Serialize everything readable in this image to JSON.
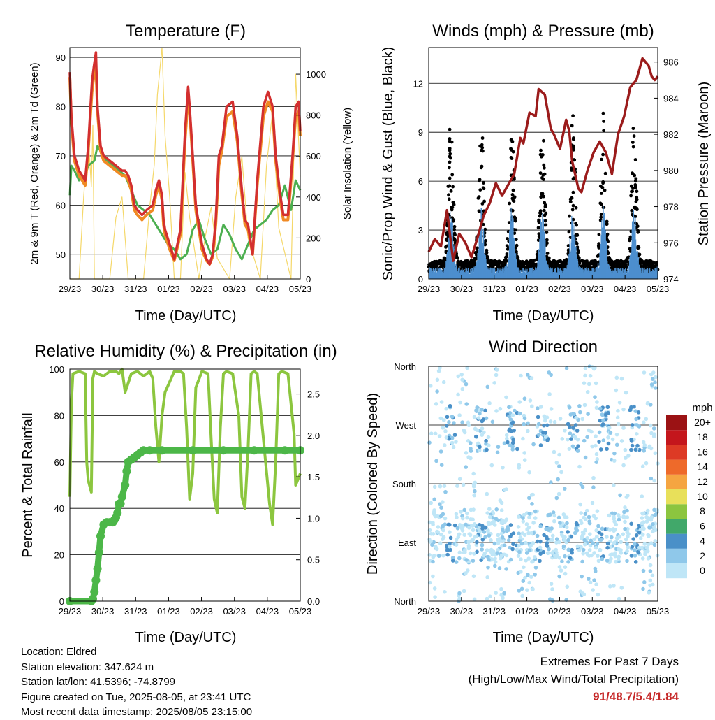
{
  "x_ticks": [
    "29/23",
    "30/23",
    "31/23",
    "01/23",
    "02/23",
    "03/23",
    "04/23",
    "05/23"
  ],
  "xlabel": "Time (Day/UTC)",
  "charts": {
    "temperature": {
      "title": "Temperature (F)",
      "ylabel": "2m & 9m T (Red, Orange) & 2m Td (Green)",
      "y2label": "Solar Insolation (Yellow)",
      "yticks": [
        "50",
        "60",
        "70",
        "80",
        "90"
      ],
      "y2ticks": [
        "0",
        "200",
        "400",
        "600",
        "800",
        "1000"
      ]
    },
    "winds": {
      "title": "Winds (mph) & Pressure (mb)",
      "ylabel": "Sonic/Prop Wind & Gust (Blue, Black)",
      "y2label": "Station Pressure (Maroon)",
      "yticks": [
        "0",
        "3",
        "6",
        "9",
        "12"
      ],
      "y2ticks": [
        "974",
        "976",
        "978",
        "980",
        "982",
        "984",
        "986"
      ]
    },
    "humidity": {
      "title": "Relative Humidity (%) & Precipitation (in)",
      "ylabel": "Percent & Total Rainfall",
      "yticks": [
        "0",
        "20",
        "40",
        "60",
        "80",
        "100"
      ],
      "y2ticks": [
        "0.0",
        "0.5",
        "1.0",
        "1.5",
        "2.0",
        "2.5"
      ]
    },
    "direction": {
      "title": "Wind Direction",
      "ylabel": "Direction (Colored By Speed)",
      "yticks": [
        "North",
        "East",
        "South",
        "West",
        "North"
      ],
      "legend_title": "mph",
      "legend_labels": [
        "0",
        "2",
        "4",
        "6",
        "8",
        "10",
        "12",
        "14",
        "16",
        "18",
        "20+"
      ],
      "legend_colors": [
        "#bfe6f7",
        "#8fc8ea",
        "#4a90c8",
        "#41a86a",
        "#8cc53f",
        "#e8e05a",
        "#f5a541",
        "#ee6a2a",
        "#dd3a25",
        "#c4161c",
        "#9b1214"
      ]
    }
  },
  "info": {
    "location": "Location: Eldred",
    "elevation": "Station elevation: 347.624 m",
    "latlon": "Station lat/lon: 41.5396; -74.8799",
    "created": "Figure created on Tue, 2025-08-05, at 23:41 UTC",
    "recent": "Most recent data timestamp: 2025/08/05 23:15:00"
  },
  "extremes": {
    "title": "Extremes For Past 7 Days",
    "subtitle": "(High/Low/Max Wind/Total Precipitation)",
    "values": "91/48.7/5.4/1.84"
  },
  "chart_data": [
    {
      "type": "line",
      "x": [
        "29/23",
        "30/23",
        "31/23",
        "01/23",
        "02/23",
        "03/23",
        "04/23",
        "05/23"
      ],
      "ylim": [
        45,
        92
      ],
      "y2lim": [
        0,
        1130
      ],
      "series": [
        {
          "color": "#d32f2f",
          "x": [
            0,
            0.05,
            0.15,
            0.3,
            0.5,
            0.6,
            0.72,
            0.78,
            0.85,
            0.9,
            1.0,
            1.1,
            1.3,
            1.5,
            1.7,
            1.8,
            1.9,
            2.0,
            2.1,
            2.2,
            2.35,
            2.5,
            2.7,
            2.8,
            2.9,
            3.0,
            3.05,
            3.1,
            3.25,
            3.4,
            3.6,
            3.75,
            3.85,
            3.9,
            4.0,
            4.1,
            4.3,
            4.45,
            4.55,
            4.65,
            4.75,
            4.85,
            4.95,
            5.1,
            5.3,
            5.45,
            5.6,
            5.7,
            5.8,
            5.95,
            6.1,
            6.3,
            6.45,
            6.6,
            6.7,
            6.85,
            6.95,
            7.1,
            7.25,
            7.35,
            7.45,
            7.5
          ],
          "y": [
            87,
            78,
            70,
            67,
            65,
            72,
            85,
            88,
            91,
            80,
            72,
            70,
            69,
            68,
            67,
            67,
            66,
            64,
            60,
            59,
            58,
            59,
            60,
            63,
            65,
            62,
            57,
            55,
            52,
            49,
            55,
            75,
            84,
            80,
            70,
            60,
            52,
            49,
            48,
            50,
            57,
            70,
            72,
            80,
            81,
            74,
            63,
            57,
            56,
            50,
            65,
            80,
            83,
            80,
            70,
            62,
            58,
            58,
            70,
            80,
            81,
            75
          ]
        },
        {
          "color": "#f08a24",
          "x": [
            0,
            0.05,
            0.15,
            0.3,
            0.5,
            0.6,
            0.72,
            0.78,
            0.85,
            0.9,
            1.0,
            1.1,
            1.3,
            1.5,
            1.7,
            1.8,
            1.9,
            2.0,
            2.1,
            2.2,
            2.35,
            2.5,
            2.7,
            2.8,
            2.9,
            3.0,
            3.05,
            3.1,
            3.25,
            3.4,
            3.6,
            3.75,
            3.85,
            3.9,
            4.0,
            4.1,
            4.3,
            4.45,
            4.55,
            4.65,
            4.75,
            4.85,
            4.95,
            5.1,
            5.3,
            5.45,
            5.6,
            5.7,
            5.8,
            5.95,
            6.1,
            6.3,
            6.45,
            6.6,
            6.7,
            6.85,
            6.95,
            7.1,
            7.25,
            7.35,
            7.45,
            7.5
          ],
          "y": [
            86,
            77,
            69,
            66,
            64,
            71,
            83,
            86,
            88,
            79,
            71,
            69,
            68,
            67,
            66,
            66,
            65,
            63,
            59,
            58,
            57,
            58,
            59,
            62,
            64,
            61,
            56,
            54,
            51,
            48.7,
            54,
            73,
            82,
            79,
            69,
            59,
            51,
            48.7,
            48,
            49.5,
            56,
            68,
            71,
            78,
            79,
            73,
            62,
            56,
            55,
            50,
            64,
            78,
            81,
            79,
            69,
            61,
            57,
            57,
            69,
            78,
            79,
            74
          ]
        },
        {
          "color": "#4caf50",
          "x": [
            0,
            0.05,
            0.15,
            0.3,
            0.5,
            0.6,
            0.8,
            0.9,
            1.0,
            1.2,
            1.4,
            1.6,
            1.8,
            2.0,
            2.2,
            2.4,
            2.6,
            2.8,
            3.0,
            3.2,
            3.4,
            3.6,
            3.8,
            4.0,
            4.2,
            4.4,
            4.6,
            4.8,
            5.0,
            5.2,
            5.4,
            5.6,
            5.8,
            6.0,
            6.2,
            6.4,
            6.6,
            6.8,
            7.0,
            7.2,
            7.35,
            7.5
          ],
          "y": [
            62,
            68,
            67,
            65,
            66,
            68,
            69,
            72,
            71,
            69,
            68,
            67,
            66,
            63,
            60,
            59,
            58,
            56,
            54,
            52,
            51,
            49,
            50,
            55,
            57,
            53,
            50,
            51,
            56,
            54,
            51,
            49,
            52,
            55,
            56,
            57,
            59,
            60,
            64,
            59,
            65,
            63
          ]
        }
      ],
      "insolation_series": {
        "color": "#f5d86a",
        "x": [
          0.0,
          0.3,
          0.45,
          0.6,
          0.7,
          0.75,
          0.8,
          1.3,
          1.5,
          1.7,
          1.9,
          2.4,
          2.6,
          2.75,
          2.85,
          3.0,
          3.1,
          3.25,
          3.4,
          3.6,
          3.75,
          3.9,
          4.2,
          4.4,
          4.6,
          4.8,
          5.2,
          5.4,
          5.6,
          5.8,
          6.2,
          6.4,
          6.6,
          6.8,
          7.2,
          7.35,
          7.5
        ],
        "y": [
          0,
          0,
          400,
          700,
          450,
          750,
          0,
          0,
          300,
          400,
          0,
          0,
          350,
          560,
          900,
          1130,
          700,
          400,
          0,
          0,
          520,
          300,
          0,
          200,
          350,
          100,
          0,
          400,
          600,
          200,
          0,
          550,
          820,
          250,
          0,
          1000,
          500
        ]
      }
    },
    {
      "type": "line",
      "x": [
        "29/23",
        "30/23",
        "31/23",
        "01/23",
        "02/23",
        "03/23",
        "04/23",
        "05/23"
      ],
      "ylim": [
        0,
        14.2
      ],
      "y2lim": [
        974,
        986.8
      ],
      "series": [
        {
          "color": "#9b1b1b",
          "x": [
            0,
            0.2,
            0.4,
            0.5,
            0.6,
            0.8,
            1.0,
            1.2,
            1.4,
            1.6,
            1.8,
            2.0,
            2.2,
            2.4,
            2.6,
            2.8,
            3.0,
            3.1,
            3.3,
            3.5,
            3.6,
            3.8,
            4.0,
            4.1,
            4.3,
            4.5,
            4.6,
            4.7,
            4.9,
            5.0,
            5.2,
            5.4,
            5.6,
            5.8,
            6.0,
            6.2,
            6.4,
            6.6,
            6.8,
            7.0,
            7.2,
            7.3,
            7.4,
            7.5
          ],
          "y": [
            975.5,
            976.2,
            975.8,
            976.8,
            977.8,
            975.0,
            976.5,
            976.0,
            975.2,
            976.3,
            977.5,
            978.2,
            979.3,
            978.6,
            979.2,
            979.8,
            981.8,
            981.5,
            983.2,
            983.0,
            984.5,
            984.2,
            982.3,
            982.0,
            981.2,
            982.8,
            982.2,
            980.5,
            979.0,
            978.8,
            980.0,
            981.0,
            981.6,
            981.0,
            979.8,
            982.0,
            983.0,
            984.6,
            985.0,
            986.2,
            985.8,
            985.2,
            985.0,
            985.2
          ]
        },
        {
          "color": "#000000",
          "name": "",
          "x": [],
          "y": []
        },
        {
          "color": "#4d8fcf",
          "name": "",
          "x": [],
          "y": []
        }
      ]
    },
    {
      "type": "line",
      "x": [
        "29/23",
        "30/23",
        "31/23",
        "01/23",
        "02/23",
        "03/23",
        "04/23",
        "05/23"
      ],
      "ylim": [
        0,
        100
      ],
      "y2lim": [
        0,
        2.8
      ],
      "series": [
        {
          "color": "#8cc63f",
          "x": [
            0,
            0.05,
            0.1,
            0.3,
            0.5,
            0.55,
            0.6,
            0.7,
            0.75,
            0.8,
            0.9,
            1.1,
            1.3,
            1.5,
            1.6,
            1.7,
            1.8,
            2.0,
            2.2,
            2.4,
            2.6,
            2.7,
            2.8,
            2.9,
            3.0,
            3.1,
            3.4,
            3.6,
            3.7,
            3.8,
            3.9,
            4.0,
            4.1,
            4.3,
            4.5,
            4.6,
            4.7,
            4.8,
            4.9,
            5.0,
            5.1,
            5.3,
            5.5,
            5.6,
            5.7,
            5.8,
            5.9,
            6.0,
            6.1,
            6.3,
            6.5,
            6.6,
            6.7,
            6.8,
            6.9,
            7.1,
            7.3,
            7.35,
            7.5
          ],
          "y": [
            45,
            85,
            98,
            99,
            98,
            60,
            52,
            47,
            96,
            99,
            98,
            97,
            99,
            99,
            98,
            100,
            90,
            98,
            99,
            97,
            99,
            96,
            75,
            60,
            80,
            90,
            99,
            99,
            98,
            75,
            44,
            55,
            92,
            99,
            98,
            70,
            44,
            38,
            75,
            98,
            99,
            98,
            80,
            45,
            40,
            65,
            98,
            99,
            98,
            70,
            42,
            33,
            60,
            98,
            99,
            98,
            72,
            50,
            55
          ]
        },
        {
          "color": "#4cb748",
          "x": [
            0,
            0.7,
            0.75,
            0.8,
            0.85,
            0.9,
            0.95,
            1.0,
            1.1,
            1.2,
            1.3,
            1.4,
            1.45,
            1.5,
            1.55,
            1.6,
            1.65,
            1.7,
            1.8,
            1.85,
            1.9,
            2.0,
            2.1,
            2.2,
            2.3,
            2.4,
            2.6,
            3.0,
            4.0,
            5.0,
            6.0,
            7.0,
            7.5
          ],
          "y": [
            0,
            0,
            1,
            4,
            9,
            14,
            21,
            28,
            33,
            34,
            34,
            34,
            35,
            36,
            38,
            42,
            42,
            45,
            50,
            56,
            60,
            61,
            62,
            63,
            64,
            65,
            65,
            65,
            65,
            65,
            65,
            65,
            65
          ]
        }
      ]
    },
    {
      "type": "scatter",
      "x": [
        "29/23",
        "30/23",
        "31/23",
        "01/23",
        "02/23",
        "03/23",
        "04/23",
        "05/23"
      ],
      "ylabel": "Direction (Colored By Speed)",
      "series": []
    }
  ]
}
